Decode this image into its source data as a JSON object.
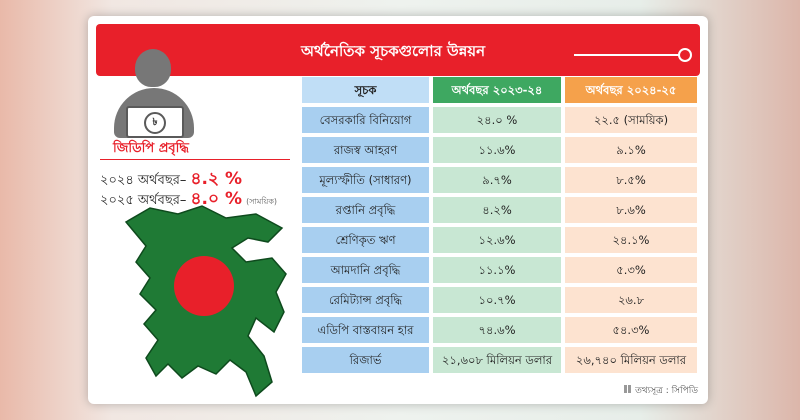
{
  "header": {
    "title": "অর্থনৈতিক সূচকগুলোর উন্নয়ন"
  },
  "icons": {
    "person": "person-with-money-icon",
    "currency": "taka-symbol-icon",
    "map": "bangladesh-map-icon"
  },
  "colors": {
    "header_red": "#e8202a",
    "indicator_blue": "#a8cff0",
    "fy2324_green": "#3ea861",
    "fy2324_cell": "#c8e7d3",
    "fy2425_orange": "#f5a14b",
    "fy2425_cell": "#fde3d0",
    "map_green": "#1f7a35"
  },
  "money_symbol": "৳",
  "gdp": {
    "title": "জিডিপি প্রবৃদ্ধি",
    "rows": [
      {
        "label": "২০২৪ অর্থবছর–",
        "value": "৪.২ %",
        "note": ""
      },
      {
        "label": "২০২৫ অর্থবছর–",
        "value": "৪.০ %",
        "note": "(সাময়িক)"
      }
    ]
  },
  "table": {
    "headers": [
      "সূচক",
      "অর্থবছর ২০২৩-২৪",
      "অর্থবছর ২০২৪-২৫"
    ],
    "rows": [
      [
        "বেসরকারি বিনিয়োগ",
        "২৪.০ %",
        "২২.৫ (সাময়িক)"
      ],
      [
        "রাজস্ব আহরণ",
        "১১.৬%",
        "৯.১%"
      ],
      [
        "মূল্যস্ফীতি (সাধারণ)",
        "৯.৭%",
        "৮.৫%"
      ],
      [
        "রপ্তানি প্রবৃদ্ধি",
        "৪.২%",
        "৮.৬%"
      ],
      [
        "শ্রেণিকৃত ঋণ",
        "১২.৬%",
        "২৪.১%"
      ],
      [
        "আমদানি প্রবৃদ্ধি",
        "১১.১%",
        "৫.৩%"
      ],
      [
        "রেমিট্যান্স প্রবৃদ্ধি",
        "১০.৭%",
        "২৬.৮"
      ],
      [
        "এডিপি বাস্তবায়ন হার",
        "৭৪.৬%",
        "৫৪.৩%"
      ],
      [
        "রিজার্ভ",
        "২১,৬০৮ মিলিয়ন ডলার",
        "২৬,৭৪০ মিলিয়ন ডলার"
      ]
    ]
  },
  "source": "তথ্যসূত্র : সিপিডি"
}
